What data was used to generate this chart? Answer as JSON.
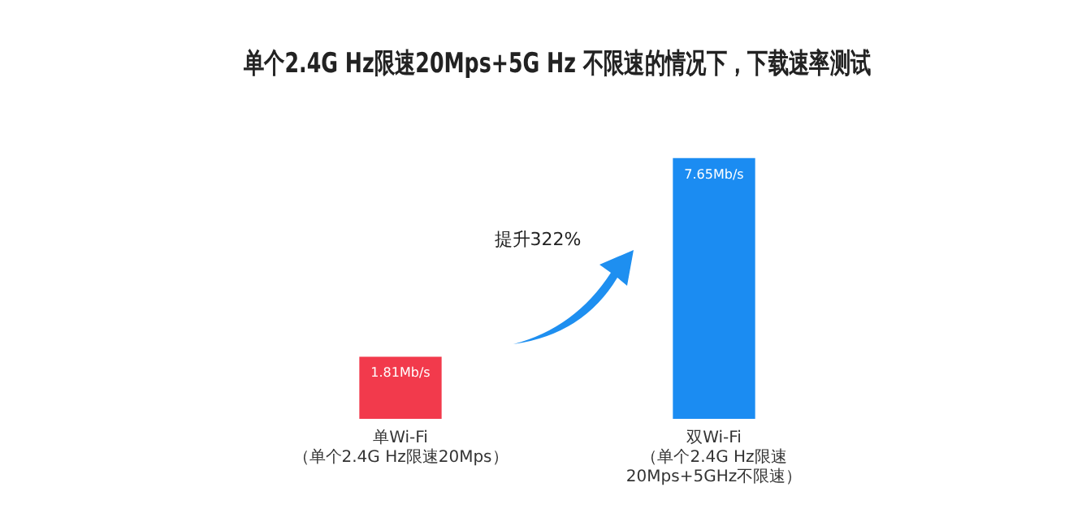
{
  "chart_data": {
    "type": "bar",
    "title": "单个2.4G Hz限速20Mps+5G Hz 不限速的情况下，下载速率测试",
    "categories": [
      "单Wi-Fi\n（单个2.4G Hz限速20Mps）",
      "双Wi-Fi\n（单个2.4G Hz限速\n20Mps+5GHz不限速）"
    ],
    "values": [
      1.81,
      7.65
    ],
    "colors": [
      "#f23a4c",
      "#1b8cf2"
    ],
    "value_labels": [
      "1.81Mb/s",
      "7.65Mb/s"
    ],
    "annotations": [
      "提升322%"
    ],
    "grid": false,
    "legend": false
  }
}
